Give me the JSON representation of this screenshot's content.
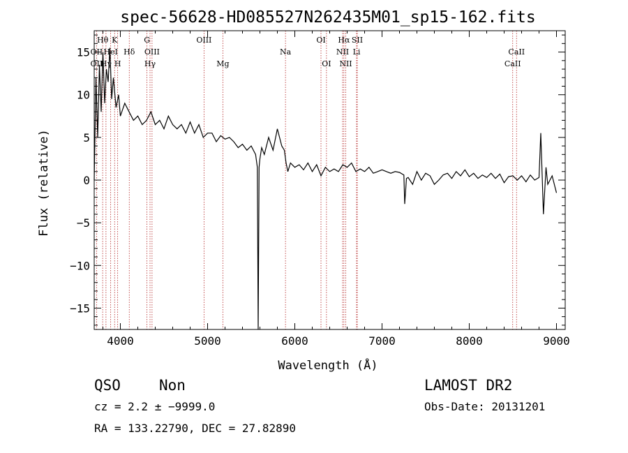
{
  "chart_data": {
    "type": "line",
    "title": "spec-56628-HD085527N262435M01_sp15-162.fits",
    "xlabel": "Wavelength (Å)",
    "ylabel": "Flux (relative)",
    "xlim": [
      3700,
      9100
    ],
    "ylim": [
      -17.5,
      17.5
    ],
    "x_ticks": [
      4000,
      5000,
      6000,
      7000,
      8000,
      9000
    ],
    "x_tick_labels": [
      "4000",
      "5000",
      "6000",
      "7000",
      "8000",
      "9000"
    ],
    "y_ticks": [
      15,
      10,
      5,
      0,
      -5,
      -10,
      -15
    ],
    "y_tick_labels": [
      "15",
      "10",
      "5",
      "0",
      "−5",
      "−10",
      "−15"
    ],
    "grid": false,
    "series": [
      {
        "color": "#000000",
        "x": [
          3700,
          3720,
          3740,
          3760,
          3780,
          3800,
          3820,
          3840,
          3860,
          3880,
          3900,
          3920,
          3950,
          3980,
          4000,
          4050,
          4100,
          4150,
          4200,
          4250,
          4300,
          4350,
          4400,
          4450,
          4500,
          4550,
          4600,
          4650,
          4700,
          4750,
          4800,
          4850,
          4900,
          4950,
          5000,
          5050,
          5100,
          5150,
          5200,
          5250,
          5300,
          5350,
          5400,
          5450,
          5500,
          5550,
          5570,
          5580,
          5590,
          5600,
          5620,
          5650,
          5700,
          5750,
          5800,
          5850,
          5880,
          5900,
          5920,
          5950,
          6000,
          6050,
          6100,
          6150,
          6200,
          6250,
          6300,
          6350,
          6400,
          6450,
          6500,
          6550,
          6600,
          6650,
          6700,
          6750,
          6800,
          6850,
          6900,
          6950,
          7000,
          7050,
          7100,
          7150,
          7200,
          7250,
          7260,
          7280,
          7300,
          7350,
          7400,
          7450,
          7500,
          7550,
          7600,
          7650,
          7700,
          7750,
          7800,
          7850,
          7900,
          7950,
          8000,
          8050,
          8100,
          8150,
          8200,
          8250,
          8300,
          8350,
          8400,
          8450,
          8500,
          8550,
          8600,
          8650,
          8700,
          8750,
          8800,
          8820,
          8850,
          8880,
          8900,
          8950,
          9000
        ],
        "y": [
          0.0,
          12.0,
          5.0,
          13.5,
          8.0,
          15.0,
          9.0,
          13.0,
          11.5,
          15.5,
          9.5,
          12.0,
          8.5,
          10.0,
          7.5,
          9.0,
          8.0,
          7.0,
          7.5,
          6.5,
          7.0,
          8.0,
          6.5,
          7.0,
          6.0,
          7.5,
          6.5,
          6.0,
          6.5,
          5.5,
          6.8,
          5.5,
          6.5,
          5.0,
          5.5,
          5.5,
          4.5,
          5.2,
          4.8,
          5.0,
          4.5,
          3.8,
          4.2,
          3.5,
          4.0,
          3.0,
          1.5,
          -17.5,
          1.5,
          2.5,
          3.8,
          3.0,
          5.0,
          3.5,
          6.0,
          4.0,
          3.5,
          2.0,
          1.0,
          2.0,
          1.5,
          1.8,
          1.2,
          2.0,
          1.0,
          1.8,
          0.5,
          1.5,
          1.0,
          1.3,
          1.0,
          1.8,
          1.5,
          2.0,
          1.0,
          1.3,
          1.0,
          1.5,
          0.8,
          1.0,
          1.2,
          1.0,
          0.8,
          1.0,
          0.9,
          0.6,
          -2.8,
          0.2,
          0.3,
          -0.5,
          1.0,
          0.0,
          0.8,
          0.5,
          -0.5,
          0.0,
          0.6,
          0.8,
          0.2,
          1.0,
          0.5,
          1.2,
          0.4,
          0.8,
          0.2,
          0.6,
          0.3,
          0.8,
          0.2,
          0.7,
          -0.3,
          0.4,
          0.5,
          0.0,
          0.5,
          -0.2,
          0.6,
          0.0,
          0.3,
          5.5,
          -4.0,
          1.5,
          -0.5,
          0.5,
          -1.5
        ]
      }
    ],
    "line_labels": [
      {
        "text": "Hθ",
        "x": 3797,
        "row": 0
      },
      {
        "text": "K",
        "x": 3934,
        "row": 0
      },
      {
        "text": "G",
        "x": 4305,
        "row": 0
      },
      {
        "text": "OIII",
        "x": 4959,
        "row": 0
      },
      {
        "text": "OI",
        "x": 6300,
        "row": 0
      },
      {
        "text": "Hα",
        "x": 6563,
        "row": 0
      },
      {
        "text": "SII",
        "x": 6716,
        "row": 0
      },
      {
        "text": "OII",
        "x": 3727,
        "row": 1
      },
      {
        "text": "HeI",
        "x": 3889,
        "row": 1
      },
      {
        "text": "Hδ",
        "x": 4102,
        "row": 1
      },
      {
        "text": "OIII",
        "x": 4363,
        "row": 1
      },
      {
        "text": "Na",
        "x": 5893,
        "row": 1
      },
      {
        "text": "NII",
        "x": 6548,
        "row": 1
      },
      {
        "text": "Li",
        "x": 6708,
        "row": 1
      },
      {
        "text": "CaII",
        "x": 8542,
        "row": 1
      },
      {
        "text": "OII",
        "x": 3727,
        "row": 2
      },
      {
        "text": "Hγ",
        "x": 3835,
        "row": 2
      },
      {
        "text": "H",
        "x": 3969,
        "row": 2
      },
      {
        "text": "Hγ",
        "x": 4340,
        "row": 2
      },
      {
        "text": "Mg",
        "x": 5175,
        "row": 2
      },
      {
        "text": "OI",
        "x": 6363,
        "row": 2
      },
      {
        "text": "NII",
        "x": 6584,
        "row": 2
      },
      {
        "text": "CaII",
        "x": 8498,
        "row": 2
      }
    ],
    "line_positions": [
      3727,
      3797,
      3835,
      3889,
      3934,
      3969,
      4102,
      4305,
      4340,
      4363,
      4959,
      5175,
      5893,
      6300,
      6363,
      6548,
      6563,
      6584,
      6708,
      6716,
      8498,
      8542
    ]
  },
  "footer": {
    "class": "QSO",
    "subclass": "Non",
    "cz": "cz = 2.2 ± −9999.0",
    "coords": "RA = 133.22790, DEC =  27.82890",
    "survey": "LAMOST DR2",
    "obsdate": "Obs-Date: 20131201"
  },
  "colors": {
    "axis": "#000000",
    "marker_line": "#b22222"
  }
}
